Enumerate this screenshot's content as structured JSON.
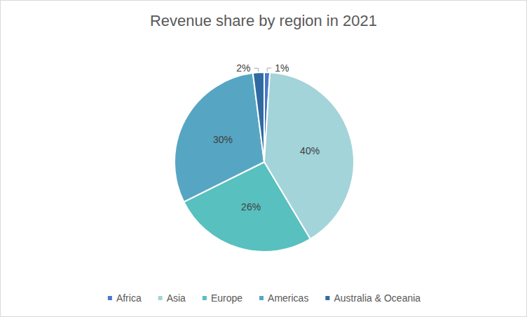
{
  "chart_data": {
    "type": "pie",
    "title": "Revenue share by region in 2021",
    "categories": [
      "Africa",
      "Asia",
      "Europe",
      "Americas",
      "Australia & Oceania"
    ],
    "values": [
      1,
      40,
      26,
      30,
      2
    ],
    "value_labels": [
      "1%",
      "40%",
      "26%",
      "30%",
      "2%"
    ],
    "colors": [
      "#4a78c9",
      "#a3d4d9",
      "#58c0bf",
      "#56a6c3",
      "#2f6ba1"
    ],
    "data_labels": true,
    "legend": "bottom"
  }
}
